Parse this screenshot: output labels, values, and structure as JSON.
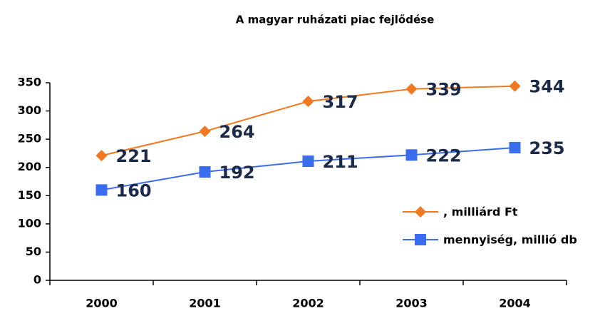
{
  "chart_data": {
    "type": "line",
    "title": "A magyar ruházati piac fejlődése",
    "categories": [
      "2000",
      "2001",
      "2002",
      "2003",
      "2004"
    ],
    "series": [
      {
        "name": ", milliárd Ft",
        "color": "#f07820",
        "marker": "diamond",
        "values": [
          221,
          264,
          317,
          339,
          344
        ]
      },
      {
        "name": "mennyiség, millió db",
        "color": "#3a6cf0",
        "marker": "square",
        "values": [
          160,
          192,
          211,
          222,
          235
        ]
      }
    ],
    "ylim": [
      0,
      350
    ],
    "yticks": [
      0,
      50,
      100,
      150,
      200,
      250,
      300,
      350
    ],
    "grid": false
  }
}
